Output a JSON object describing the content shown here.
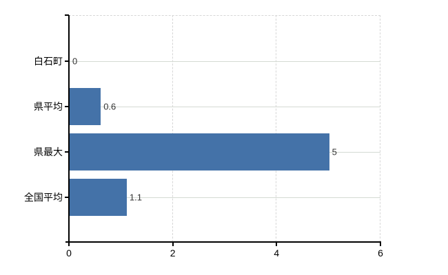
{
  "chart_data": {
    "type": "bar",
    "orientation": "horizontal",
    "title": "",
    "categories": [
      "白石町",
      "県平均",
      "県最大",
      "全国平均"
    ],
    "values": [
      0,
      0.6,
      5,
      1.1
    ],
    "data_labels": [
      "0",
      "0.6",
      "5",
      "1.1"
    ],
    "x_ticks": [
      0,
      2,
      4,
      6
    ],
    "x_tick_labels": [
      "0",
      "2",
      "4",
      "6"
    ],
    "xlim": [
      0,
      6
    ],
    "ylabel": "",
    "xlabel": "",
    "legend": "none",
    "grid": {
      "vertical_style": "dashed",
      "horizontal_style": "solid"
    }
  },
  "colors": {
    "bar": "#4472a8",
    "axis": "#000000",
    "grid_dashed": "#d6d6d6",
    "grid_solid": "#d4dad3",
    "data_label": "#333333",
    "tick_label": "#000000",
    "background": "#ffffff"
  }
}
